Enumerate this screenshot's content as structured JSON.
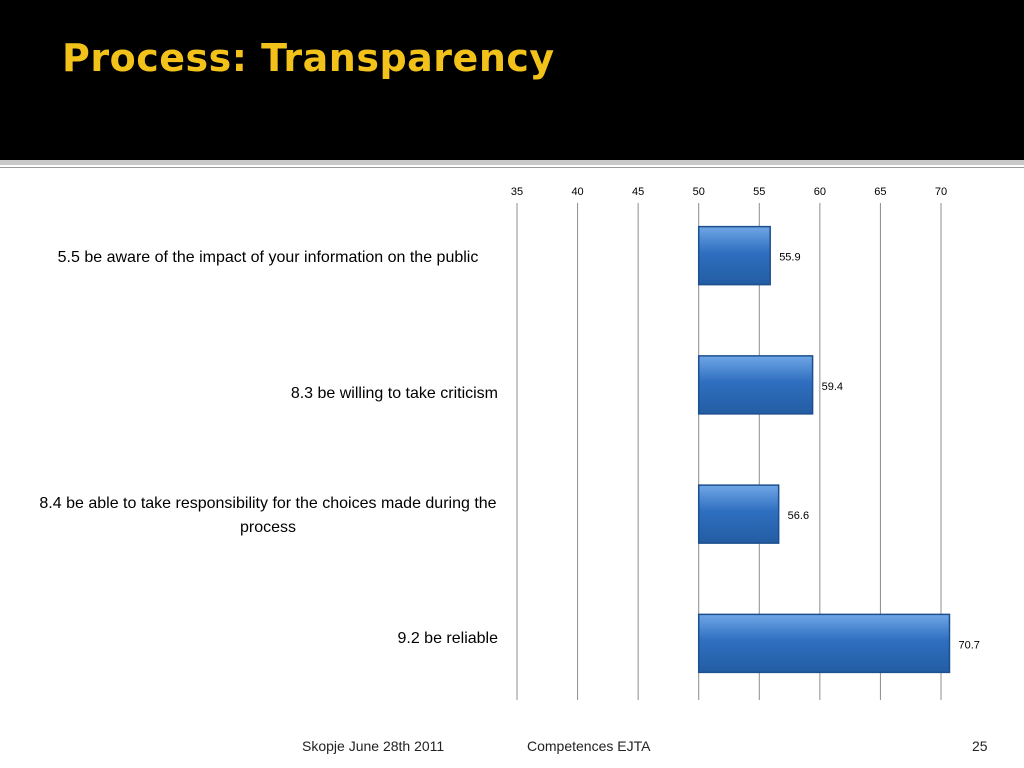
{
  "slide": {
    "title": "Process: Transparency",
    "footer_left": "Skopje June 28th 2011",
    "footer_center": "Competences EJTA",
    "page_number": "25"
  },
  "colors": {
    "bar_fill": "#2f6fc0",
    "bar_edge": "#1d4f8f",
    "title": "#f2c21b",
    "grid": "#8c8c8c"
  },
  "chart_data": {
    "type": "bar",
    "orientation": "horizontal",
    "categories": [
      "5.5 be aware of the impact of your information on the public",
      "8.3 be willing to take criticism",
      "8.4 be able to take responsibility for the choices made during the process",
      "9.2 be reliable"
    ],
    "values": [
      55.9,
      59.4,
      56.6,
      70.7
    ],
    "data_labels": [
      "55.9",
      "59.4",
      "56.6",
      "70.7"
    ],
    "xticks": [
      "35",
      "40",
      "45",
      "50",
      "55",
      "60",
      "65",
      "70"
    ],
    "xlim": [
      35,
      70
    ],
    "bar_base": 50,
    "grid": true,
    "axis_position": "top",
    "legend": "none"
  }
}
